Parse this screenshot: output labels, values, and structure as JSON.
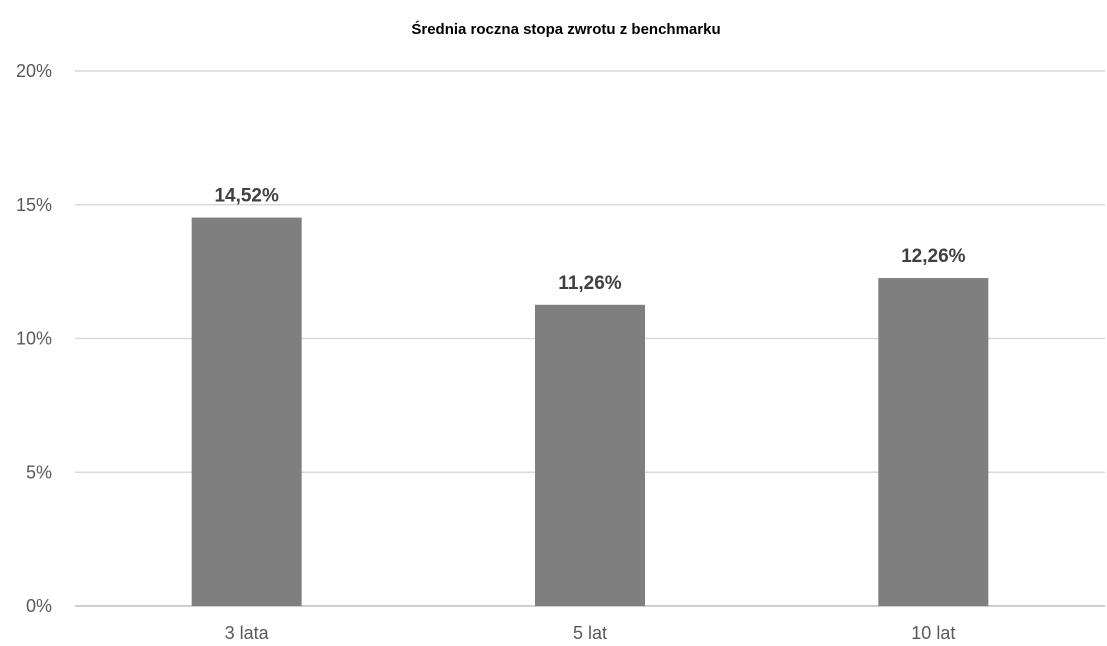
{
  "chart_data": {
    "type": "bar",
    "title": "Średnia roczna stopa zwrotu z benchmarku",
    "xlabel": "",
    "ylabel": "",
    "categories": [
      "3 lata",
      "5 lat",
      "10 lat"
    ],
    "values": [
      14.52,
      11.26,
      12.26
    ],
    "data_labels": [
      "14,52%",
      "11,26%",
      "12,26%"
    ],
    "ylim": [
      0,
      20
    ],
    "yticks": [
      0,
      5,
      10,
      15,
      20
    ],
    "ytick_labels": [
      "0%",
      "5%",
      "10%",
      "15%",
      "20%"
    ],
    "grid": true,
    "legend": "none",
    "colors": {
      "bar": "#7f7f7f",
      "grid": "#d9d9d9",
      "axis": "#bfbfbf",
      "tick_text": "#595959",
      "label_text": "#404040",
      "title_text": "#000000"
    }
  }
}
